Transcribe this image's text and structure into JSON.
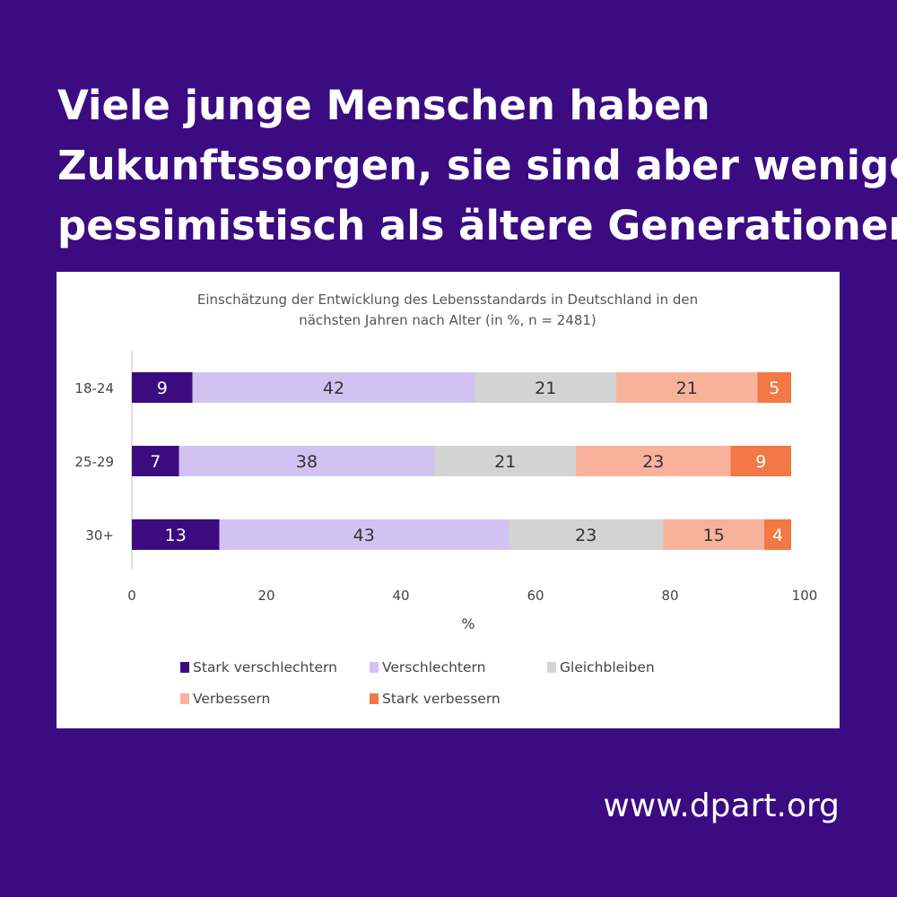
{
  "headline": {
    "lines": [
      "Viele junge Menschen haben",
      "Zukunftssorgen, sie sind aber weniger",
      "pessimistisch als ältere Generationen"
    ]
  },
  "website": "www.dpart.org",
  "colors": {
    "background": "#3b0b82",
    "stark_verschlechtern": "#3a0c80",
    "verschlechtern": "#d2c2f2",
    "gleichbleiben": "#d3d3d3",
    "verbessern": "#f8b29b",
    "stark_verbessern": "#f27846"
  },
  "chart_data": {
    "type": "bar",
    "orientation": "horizontal",
    "stacked": true,
    "title_lines": [
      "Einschätzung der Entwicklung des Lebensstandards in Deutschland in den",
      "nächsten Jahren nach Alter (in %, n = 2481)"
    ],
    "categories": [
      "18-24",
      "25-29",
      "30+"
    ],
    "series": [
      {
        "name": "Stark verschlechtern",
        "color": "#3a0c80",
        "label_color": "#ffffff",
        "values": [
          9,
          7,
          13
        ]
      },
      {
        "name": "Verschlechtern",
        "color": "#d2c2f2",
        "label_color": "#333333",
        "values": [
          42,
          38,
          43
        ]
      },
      {
        "name": "Gleichbleiben",
        "color": "#d3d3d3",
        "label_color": "#333333",
        "values": [
          21,
          21,
          23
        ]
      },
      {
        "name": "Verbessern",
        "color": "#f8b29b",
        "label_color": "#333333",
        "values": [
          21,
          23,
          15
        ]
      },
      {
        "name": "Stark verbessern",
        "color": "#f27846",
        "label_color": "#ffffff",
        "values": [
          5,
          9,
          4
        ]
      }
    ],
    "xlabel": "%",
    "ylabel": "",
    "xlim": [
      0,
      100
    ],
    "xticks": [
      "0",
      "20",
      "40",
      "60",
      "80",
      "100"
    ],
    "legend_position": "bottom"
  }
}
